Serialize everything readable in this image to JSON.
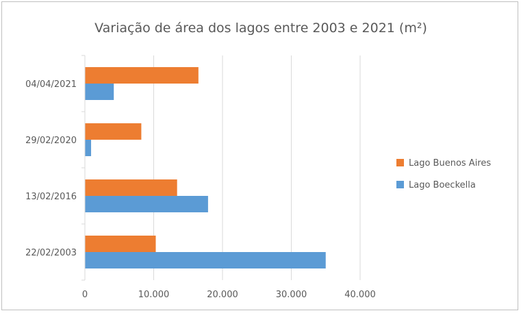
{
  "chart_data": {
    "type": "bar",
    "orientation": "horizontal",
    "title": "Variação de área dos lagos entre 2003 e 2021 (m²)",
    "xlabel": "",
    "ylabel": "",
    "categories": [
      "22/02/2003",
      "13/02/2016",
      "29/02/2020",
      "04/04/2021"
    ],
    "series": [
      {
        "name": "Lago Boeckella",
        "color": "#5b9bd5",
        "values": [
          35000,
          17900,
          900,
          4200
        ]
      },
      {
        "name": "Lago Buenos Aires",
        "color": "#ed7d31",
        "values": [
          10300,
          13400,
          8200,
          16500
        ]
      }
    ],
    "xlim": [
      0,
      40000
    ],
    "xticks": [
      0,
      10000,
      20000,
      30000,
      40000
    ],
    "xtick_labels": [
      "0",
      "10.000",
      "20.000",
      "30.000",
      "40.000"
    ],
    "grid": true,
    "legend_position": "right",
    "legend_order": [
      "Lago Buenos Aires",
      "Lago Boeckella"
    ]
  }
}
